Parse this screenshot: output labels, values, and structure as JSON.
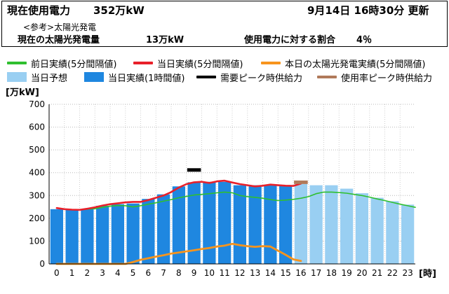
{
  "header": {
    "current_label": "現在使用電力",
    "current_value": "352万kW",
    "updated_at": "9月14日 16時30分 更新",
    "reference_label": "<参考>太陽光発電",
    "solar_label": "現在の太陽光発電量",
    "solar_value": "13万kW",
    "ratio_label": "使用電力に対する割合",
    "ratio_value": "4％"
  },
  "legend": {
    "prev_day": "前日実績(5分間隔値)",
    "today_5min": "当日実績(5分間隔値)",
    "solar": "本日の太陽光発電実績(5分間隔値)",
    "forecast": "当日予想",
    "today_hourly": "当日実績(1時間値)",
    "peak_demand": "需要ピーク時供給力",
    "peak_usage": "使用率ピーク時供給力"
  },
  "colors": {
    "prev_day": "#2fbf2f",
    "today_5min": "#e8202a",
    "solar": "#f7941d",
    "forecast": "#99cff2",
    "today_hourly": "#1f87e0",
    "peak_demand": "#000000",
    "peak_usage": "#b07a5a"
  },
  "chart_data": {
    "type": "bar",
    "ylabel": "[万kW]",
    "xlabel": "[時]",
    "ylim": [
      0,
      700
    ],
    "yticks": [
      0,
      100,
      200,
      300,
      400,
      500,
      600,
      700
    ],
    "categories": [
      "0",
      "1",
      "2",
      "3",
      "4",
      "5",
      "6",
      "7",
      "8",
      "9",
      "10",
      "11",
      "12",
      "13",
      "14",
      "15",
      "16",
      "17",
      "18",
      "19",
      "20",
      "21",
      "22",
      "23"
    ],
    "grid": true,
    "today_hourly": [
      240,
      238,
      240,
      255,
      262,
      265,
      285,
      305,
      340,
      358,
      360,
      360,
      345,
      345,
      345,
      345
    ],
    "forecast": [
      {
        "hour": 16,
        "value": 350
      },
      {
        "hour": 17,
        "value": 345
      },
      {
        "hour": 18,
        "value": 345
      },
      {
        "hour": 19,
        "value": 330
      },
      {
        "hour": 20,
        "value": 310
      },
      {
        "hour": 21,
        "value": 290
      },
      {
        "hour": 22,
        "value": 275
      },
      {
        "hour": 23,
        "value": 260
      }
    ],
    "prev_day_5min": [
      [
        0,
        245
      ],
      [
        0.5,
        240
      ],
      [
        1,
        238
      ],
      [
        1.5,
        238
      ],
      [
        2,
        240
      ],
      [
        2.5,
        242
      ],
      [
        3,
        248
      ],
      [
        3.5,
        253
      ],
      [
        4,
        256
      ],
      [
        4.5,
        255
      ],
      [
        5,
        250
      ],
      [
        5.5,
        255
      ],
      [
        6,
        262
      ],
      [
        6.5,
        268
      ],
      [
        7,
        275
      ],
      [
        7.5,
        282
      ],
      [
        8,
        290
      ],
      [
        8.5,
        296
      ],
      [
        9,
        302
      ],
      [
        9.5,
        305
      ],
      [
        10,
        308
      ],
      [
        10.5,
        312
      ],
      [
        11,
        315
      ],
      [
        11.5,
        312
      ],
      [
        12,
        300
      ],
      [
        12.5,
        295
      ],
      [
        13,
        292
      ],
      [
        13.5,
        288
      ],
      [
        14,
        282
      ],
      [
        14.5,
        278
      ],
      [
        15,
        280
      ],
      [
        15.5,
        283
      ],
      [
        16,
        288
      ],
      [
        16.5,
        295
      ],
      [
        17,
        308
      ],
      [
        17.5,
        315
      ],
      [
        18,
        315
      ],
      [
        18.5,
        313
      ],
      [
        19,
        310
      ],
      [
        19.5,
        305
      ],
      [
        20,
        300
      ],
      [
        20.5,
        293
      ],
      [
        21,
        285
      ],
      [
        21.5,
        278
      ],
      [
        22,
        270
      ],
      [
        22.5,
        262
      ],
      [
        23,
        255
      ],
      [
        23.5,
        248
      ]
    ],
    "today_5min": [
      [
        0,
        245
      ],
      [
        0.5,
        240
      ],
      [
        1,
        238
      ],
      [
        1.5,
        237
      ],
      [
        2,
        242
      ],
      [
        2.5,
        248
      ],
      [
        3,
        256
      ],
      [
        3.5,
        262
      ],
      [
        4,
        266
      ],
      [
        4.5,
        270
      ],
      [
        5,
        272
      ],
      [
        5.5,
        272
      ],
      [
        6,
        280
      ],
      [
        6.5,
        290
      ],
      [
        7,
        300
      ],
      [
        7.5,
        315
      ],
      [
        8,
        335
      ],
      [
        8.5,
        350
      ],
      [
        9,
        358
      ],
      [
        9.5,
        360
      ],
      [
        10,
        355
      ],
      [
        10.5,
        362
      ],
      [
        11,
        365
      ],
      [
        11.5,
        357
      ],
      [
        12,
        350
      ],
      [
        12.5,
        345
      ],
      [
        13,
        340
      ],
      [
        13.5,
        343
      ],
      [
        14,
        348
      ],
      [
        14.5,
        345
      ],
      [
        15,
        343
      ],
      [
        15.5,
        342
      ],
      [
        16,
        352
      ]
    ],
    "solar_5min": [
      [
        0,
        0
      ],
      [
        1,
        0
      ],
      [
        2,
        0
      ],
      [
        3,
        0
      ],
      [
        4,
        0
      ],
      [
        4.5,
        0
      ],
      [
        5,
        8
      ],
      [
        5.5,
        18
      ],
      [
        6,
        25
      ],
      [
        6.5,
        32
      ],
      [
        7,
        38
      ],
      [
        7.5,
        45
      ],
      [
        8,
        50
      ],
      [
        8.5,
        55
      ],
      [
        9,
        60
      ],
      [
        9.5,
        65
      ],
      [
        10,
        70
      ],
      [
        10.5,
        76
      ],
      [
        11,
        80
      ],
      [
        11.5,
        88
      ],
      [
        12,
        82
      ],
      [
        12.5,
        78
      ],
      [
        13,
        75
      ],
      [
        13.5,
        78
      ],
      [
        14,
        76
      ],
      [
        14.5,
        58
      ],
      [
        15,
        40
      ],
      [
        15.5,
        20
      ],
      [
        16,
        13
      ]
    ],
    "peak_demand": {
      "hour": 9,
      "value": 412
    },
    "peak_usage": {
      "hour": 16,
      "value": 358
    }
  }
}
